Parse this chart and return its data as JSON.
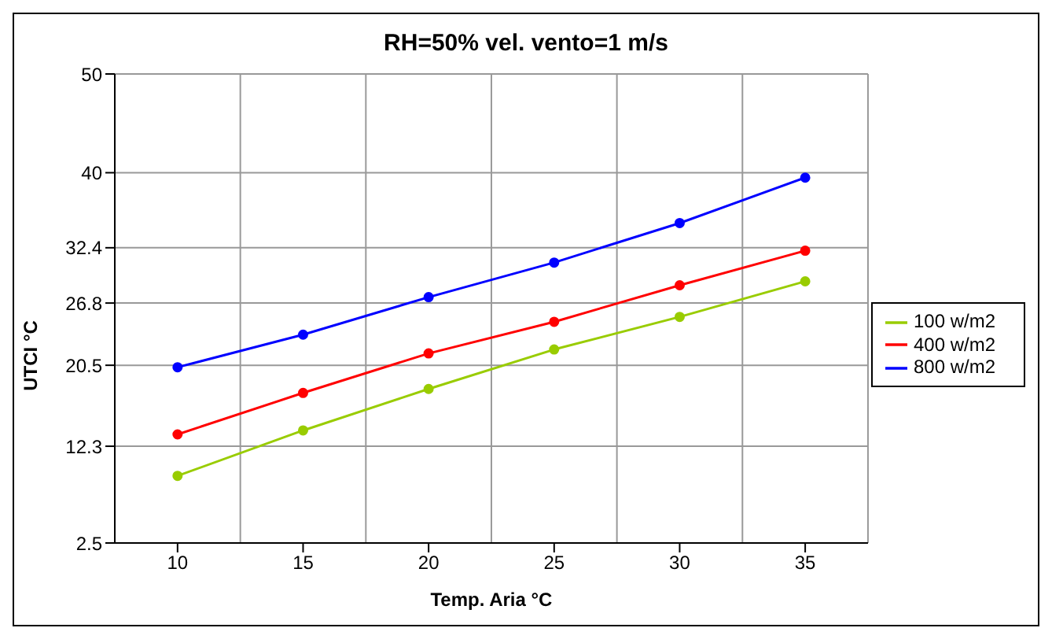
{
  "chart_data": {
    "type": "line",
    "title": "RH=50% vel. vento=1 m/s",
    "xlabel": "Temp. Aria °C",
    "ylabel": "UTCI   °C",
    "categories": [
      "10",
      "15",
      "20",
      "25",
      "30",
      "35"
    ],
    "series": [
      {
        "name": "100 w/m2",
        "color": "#99cc00",
        "values": [
          9.3,
          13.9,
          18.1,
          22.1,
          25.4,
          29.0
        ]
      },
      {
        "name": "400 w/m2",
        "color": "#ff0000",
        "values": [
          13.5,
          17.7,
          21.7,
          24.9,
          28.6,
          32.1
        ]
      },
      {
        "name": "800 w/m2",
        "color": "#0000ff",
        "values": [
          20.3,
          23.6,
          27.4,
          30.9,
          34.9,
          39.5
        ]
      }
    ],
    "ylim": [
      2.5,
      50
    ],
    "yticks": [
      2.5,
      12.3,
      20.5,
      26.8,
      32.4,
      40,
      50
    ],
    "grid": true,
    "legend": "right",
    "marker": "circle",
    "line_style": "solid"
  }
}
